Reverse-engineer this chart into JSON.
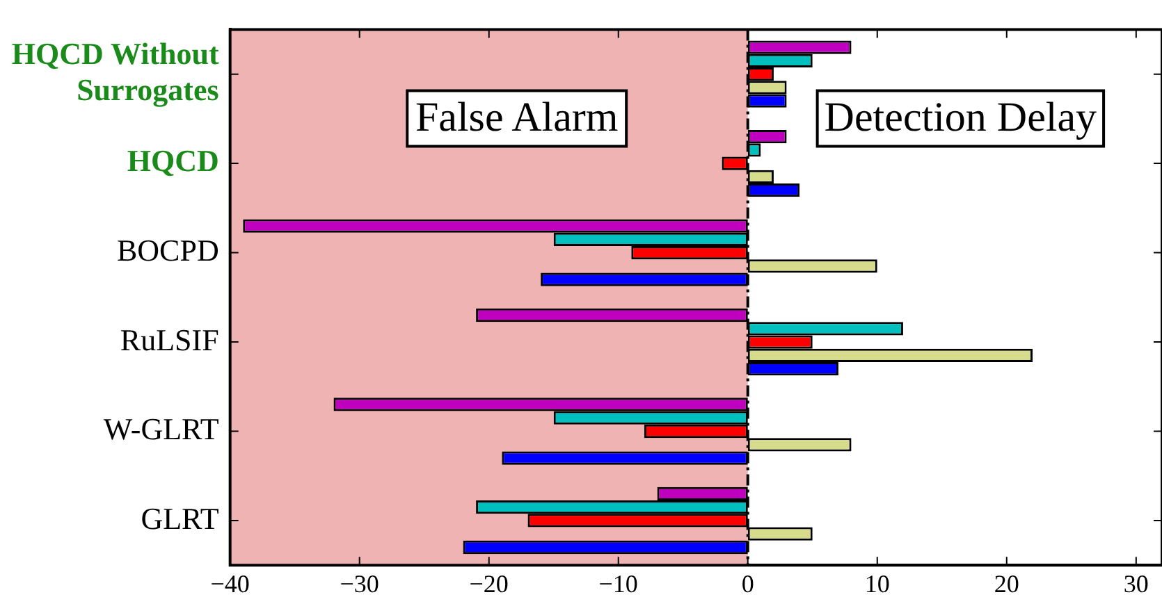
{
  "chart_data": {
    "type": "bar",
    "orientation": "horizontal",
    "categories": [
      "HQCD Without Surrogates",
      "HQCD",
      "BOCPD",
      "RuLSIF",
      "W-GLRT",
      "GLRT"
    ],
    "series": [
      {
        "color": "#bf00bf",
        "values": [
          8,
          3,
          -39,
          -21,
          -32,
          -7
        ]
      },
      {
        "color": "#00bfbf",
        "values": [
          5,
          1,
          -15,
          12,
          -15,
          -21
        ]
      },
      {
        "color": "#ff0000",
        "values": [
          2,
          -2,
          -9,
          5,
          -8,
          -17
        ]
      },
      {
        "color": "#d6dc8c",
        "values": [
          3,
          2,
          10,
          22,
          8,
          5
        ]
      },
      {
        "color": "#0000ff",
        "values": [
          3,
          4,
          -16,
          7,
          -19,
          -22
        ]
      }
    ],
    "xlim": [
      -40,
      32
    ],
    "xticks": [
      -40,
      -30,
      -20,
      -10,
      0,
      10,
      20,
      30
    ],
    "bands": [
      {
        "axis": "x",
        "from": -40,
        "to": 0,
        "color": "#f0b3b3"
      }
    ],
    "ref_lines": [
      {
        "axis": "x",
        "value": 0,
        "line_style": "dashdot"
      }
    ],
    "annotations": [
      "False Alarm",
      "Detection Delay"
    ],
    "grid": false,
    "legend": false
  }
}
